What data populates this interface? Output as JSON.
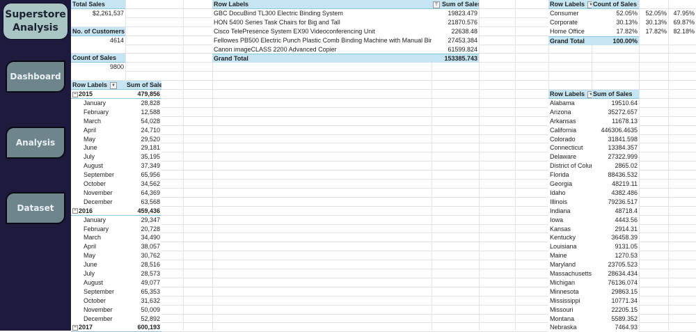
{
  "sidebar": {
    "title": "Superstore Analysis",
    "buttons": [
      {
        "label": "Dashboard"
      },
      {
        "label": "Analysis"
      },
      {
        "label": "Dataset"
      }
    ]
  },
  "kpis": [
    {
      "label": "Total Sales",
      "value": "$2,261,537"
    },
    {
      "label": "No. of Customers",
      "value": "4614"
    },
    {
      "label": "Count of Sales",
      "value": "9800"
    }
  ],
  "monthly_pivot": {
    "headers": [
      "Row Labels",
      "Sum of Sales"
    ],
    "years": [
      {
        "year": "2015",
        "total": "479,856",
        "months": [
          [
            "January",
            "28,828"
          ],
          [
            "February",
            "12,588"
          ],
          [
            "March",
            "54,028"
          ],
          [
            "April",
            "24,710"
          ],
          [
            "May",
            "29,520"
          ],
          [
            "June",
            "29,181"
          ],
          [
            "July",
            "35,195"
          ],
          [
            "August",
            "37,349"
          ],
          [
            "September",
            "65,956"
          ],
          [
            "October",
            "34,562"
          ],
          [
            "November",
            "64,369"
          ],
          [
            "December",
            "63,568"
          ]
        ]
      },
      {
        "year": "2016",
        "total": "459,436",
        "months": [
          [
            "January",
            "29,347"
          ],
          [
            "February",
            "20,728"
          ],
          [
            "March",
            "34,490"
          ],
          [
            "April",
            "38,057"
          ],
          [
            "May",
            "30,762"
          ],
          [
            "June",
            "28,516"
          ],
          [
            "July",
            "28,573"
          ],
          [
            "August",
            "49,077"
          ],
          [
            "September",
            "65,353"
          ],
          [
            "October",
            "31,632"
          ],
          [
            "November",
            "50,009"
          ],
          [
            "December",
            "52,892"
          ]
        ]
      },
      {
        "year": "2017",
        "total": "600,193",
        "months": []
      }
    ]
  },
  "product_pivot": {
    "headers": [
      "Row Labels",
      "Sum of Sales"
    ],
    "rows": [
      [
        "GBC DocuBind TL300 Electric Binding System",
        "19823.479"
      ],
      [
        "HON 5400 Series Task Chairs for Big and Tall",
        "21870.576"
      ],
      [
        "Cisco TelePresence System EX90 Videoconferencing Unit",
        "22638.48"
      ],
      [
        "Fellowes PB500 Electric Punch Plastic Comb Binding Machine with Manual Bind",
        "27453.384"
      ],
      [
        "Canon imageCLASS 2200 Advanced Copier",
        "61599.824"
      ]
    ],
    "grand_total": [
      "Grand Total",
      "153385.743"
    ]
  },
  "segment_pivot": {
    "headers": [
      "Row Labels",
      "Count of Sales"
    ],
    "rows": [
      [
        "Consumer",
        "52.05%",
        "52.05%",
        "47.95%"
      ],
      [
        "Corporate",
        "30.13%",
        "30.13%",
        "69.87%"
      ],
      [
        "Home Office",
        "17.82%",
        "17.82%",
        "82.18%"
      ]
    ],
    "grand_total": [
      "Grand Total",
      "100.00%"
    ]
  },
  "state_pivot": {
    "headers": [
      "Row Labels",
      "Sum of Sales"
    ],
    "rows": [
      [
        "Alabama",
        "19510.64"
      ],
      [
        "Arizona",
        "35272.657"
      ],
      [
        "Arkansas",
        "11678.13"
      ],
      [
        "California",
        "446306.4635"
      ],
      [
        "Colorado",
        "31841.598"
      ],
      [
        "Connecticut",
        "13384.357"
      ],
      [
        "Delaware",
        "27322.999"
      ],
      [
        "District of Colun",
        "2865.02"
      ],
      [
        "Florida",
        "88436.532"
      ],
      [
        "Georgia",
        "48219.11"
      ],
      [
        "Idaho",
        "4382.486"
      ],
      [
        "Illinois",
        "79236.517"
      ],
      [
        "Indiana",
        "48718.4"
      ],
      [
        "Iowa",
        "4443.56"
      ],
      [
        "Kansas",
        "2914.31"
      ],
      [
        "Kentucky",
        "36458.39"
      ],
      [
        "Louisiana",
        "9131.05"
      ],
      [
        "Maine",
        "1270.53"
      ],
      [
        "Maryland",
        "23705.523"
      ],
      [
        "Massachusetts",
        "28634.434"
      ],
      [
        "Michigan",
        "76136.074"
      ],
      [
        "Minnesota",
        "29863.15"
      ],
      [
        "Mississippi",
        "10771.34"
      ],
      [
        "Missouri",
        "22205.15"
      ],
      [
        "Montana",
        "5589.352"
      ],
      [
        "Nebraska",
        "7464.93"
      ]
    ]
  },
  "colors": {
    "sidebar_bg": "#1d1a3e",
    "title_bg": "#a9c6c5",
    "button_bg": "#6f858c",
    "pivot_header": "#c5e5f2"
  }
}
